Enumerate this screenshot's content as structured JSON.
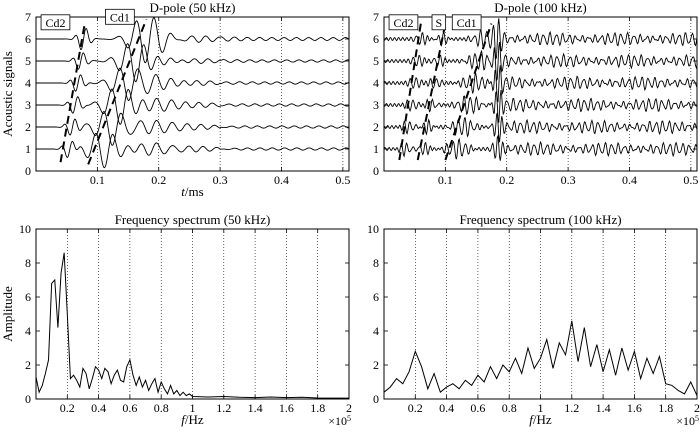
{
  "chart_data": [
    {
      "id": "p1",
      "type": "line",
      "subtype": "waveform-stack",
      "title": "D-pole (50 kHz)",
      "xlabel_italic": "t",
      "xlabel_unit": "/ms",
      "ylabel": "Acoustic signals",
      "xlim": [
        0,
        0.51
      ],
      "ylim": [
        0,
        7
      ],
      "xticks": [
        0.1,
        0.2,
        0.3,
        0.4,
        0.5
      ],
      "xtick_labels": [
        "0.1",
        "0.2",
        "0.3",
        "0.4",
        "0.5"
      ],
      "yticks": [
        0,
        1,
        2,
        3,
        4,
        5,
        6,
        7
      ],
      "ytick_labels": [
        "0",
        "1",
        "2",
        "3",
        "4",
        "5",
        "6",
        "7"
      ],
      "dotted_gridlines_x": [
        0.1,
        0.2,
        0.3,
        0.4,
        0.5
      ],
      "traces": [
        1,
        2,
        3,
        4,
        5,
        6
      ],
      "annotations": [
        {
          "label": "Cd2",
          "x": 0.005,
          "y": 6.6,
          "boxed": true
        },
        {
          "label": "Cd1",
          "x": 0.11,
          "y": 6.85,
          "boxed": true
        }
      ],
      "arrival_lines": [
        {
          "name": "Cd2",
          "x": [
            0.04,
            0.08
          ],
          "y": [
            0.4,
            6.8
          ]
        },
        {
          "name": "Cd1",
          "x": [
            0.085,
            0.18
          ],
          "y": [
            0.3,
            6.9
          ]
        }
      ]
    },
    {
      "id": "p2",
      "type": "line",
      "subtype": "waveform-stack",
      "title": "D-pole (100 kHz)",
      "xlim": [
        0,
        0.51
      ],
      "ylim": [
        0,
        7
      ],
      "xticks": [
        0.1,
        0.2,
        0.3,
        0.4,
        0.5
      ],
      "xtick_labels": [
        "0.1",
        "0.2",
        "0.3",
        "0.4",
        "0.5"
      ],
      "yticks": [
        0,
        1,
        2,
        3,
        4,
        5,
        6,
        7
      ],
      "ytick_labels": [
        "0",
        "1",
        "2",
        "3",
        "4",
        "5",
        "6",
        "7"
      ],
      "dotted_gridlines_x": [
        0.1,
        0.2,
        0.3,
        0.4,
        0.5
      ],
      "traces": [
        1,
        2,
        3,
        4,
        5,
        6
      ],
      "annotations": [
        {
          "label": "Cd2",
          "x": 0.005,
          "y": 6.6,
          "boxed": true
        },
        {
          "label": "S",
          "x": 0.075,
          "y": 6.6,
          "boxed": true
        },
        {
          "label": "Cd1",
          "x": 0.108,
          "y": 6.6,
          "boxed": true
        }
      ],
      "arrival_lines": [
        {
          "name": "Cd2",
          "x": [
            0.025,
            0.06
          ],
          "y": [
            0.5,
            6.7
          ]
        },
        {
          "name": "S",
          "x": [
            0.055,
            0.1
          ],
          "y": [
            0.5,
            6.7
          ]
        },
        {
          "name": "Cd1",
          "x": [
            0.1,
            0.175
          ],
          "y": [
            0.5,
            6.7
          ]
        }
      ]
    },
    {
      "id": "p3",
      "type": "line",
      "title": "Frequency spectrum (50 kHz)",
      "xlabel_italic": "f",
      "xlabel_unit": "/Hz",
      "ylabel": "Amplitude",
      "multiplier": "×10",
      "multiplier_exp": "5",
      "xlim": [
        0,
        2.0
      ],
      "ylim": [
        0,
        10
      ],
      "xticks": [
        0.2,
        0.4,
        0.6,
        0.8,
        1.0,
        1.2,
        1.4,
        1.6,
        1.8,
        2.0
      ],
      "xtick_labels": [
        "0.2",
        "0.4",
        "0.6",
        "0.8",
        "1",
        "1.2",
        "1.4",
        "1.6",
        "1.8",
        "2"
      ],
      "yticks": [
        0,
        2,
        4,
        6,
        8,
        10
      ],
      "ytick_labels": [
        "0",
        "2",
        "4",
        "6",
        "8",
        "10"
      ],
      "dotted_gridlines_x": [
        0.2,
        0.4,
        0.6,
        0.8,
        1.0,
        1.2,
        1.4,
        1.6,
        1.8
      ],
      "x": [
        0.0,
        0.02,
        0.04,
        0.06,
        0.08,
        0.1,
        0.12,
        0.14,
        0.16,
        0.18,
        0.2,
        0.22,
        0.24,
        0.26,
        0.28,
        0.3,
        0.32,
        0.34,
        0.36,
        0.38,
        0.4,
        0.42,
        0.44,
        0.46,
        0.48,
        0.5,
        0.52,
        0.54,
        0.56,
        0.58,
        0.6,
        0.62,
        0.64,
        0.66,
        0.68,
        0.7,
        0.72,
        0.74,
        0.76,
        0.78,
        0.8,
        0.82,
        0.84,
        0.86,
        0.88,
        0.9,
        0.92,
        0.94,
        0.96,
        0.98,
        1.0,
        1.1,
        1.2,
        1.3,
        1.4,
        1.5,
        1.6,
        1.7,
        1.8,
        1.9,
        2.0
      ],
      "values": [
        1.3,
        0.4,
        0.8,
        1.5,
        2.3,
        6.8,
        7.0,
        4.2,
        7.4,
        8.6,
        5.0,
        1.2,
        1.4,
        1.1,
        0.7,
        1.8,
        1.5,
        0.6,
        1.2,
        1.9,
        1.7,
        1.2,
        1.8,
        1.6,
        0.9,
        1.4,
        1.7,
        1.1,
        1.0,
        1.9,
        2.3,
        1.4,
        0.8,
        1.3,
        0.7,
        1.1,
        0.5,
        0.9,
        1.2,
        0.4,
        1.0,
        0.6,
        0.3,
        0.8,
        0.3,
        0.5,
        0.2,
        0.4,
        0.2,
        0.3,
        0.15,
        0.12,
        0.15,
        0.1,
        0.08,
        0.12,
        0.08,
        0.1,
        0.06,
        0.05,
        0.05
      ]
    },
    {
      "id": "p4",
      "type": "line",
      "title": "Frequency spectrum (100 kHz)",
      "xlabel_italic": "f",
      "xlabel_unit": "/Hz",
      "multiplier": "×10",
      "multiplier_exp": "5",
      "xlim": [
        0,
        2.0
      ],
      "ylim": [
        0,
        10
      ],
      "xticks": [
        0.2,
        0.4,
        0.6,
        0.8,
        1.0,
        1.2,
        1.4,
        1.6,
        1.8,
        2.0
      ],
      "xtick_labels": [
        "0.2",
        "0.4",
        "0.6",
        "0.8",
        "1",
        "1.2",
        "1.4",
        "1.6",
        "1.8",
        "2"
      ],
      "yticks": [
        0,
        2,
        4,
        6,
        8,
        10
      ],
      "ytick_labels": [
        "0",
        "2",
        "4",
        "6",
        "8",
        "10"
      ],
      "dotted_gridlines_x": [
        0.2,
        0.4,
        0.6,
        0.8,
        1.0,
        1.2,
        1.4,
        1.6,
        1.8
      ],
      "x": [
        0.0,
        0.04,
        0.08,
        0.12,
        0.16,
        0.2,
        0.24,
        0.28,
        0.32,
        0.36,
        0.4,
        0.44,
        0.48,
        0.52,
        0.56,
        0.6,
        0.64,
        0.68,
        0.72,
        0.76,
        0.8,
        0.84,
        0.88,
        0.92,
        0.96,
        1.0,
        1.04,
        1.08,
        1.12,
        1.16,
        1.2,
        1.24,
        1.28,
        1.32,
        1.36,
        1.4,
        1.44,
        1.48,
        1.52,
        1.56,
        1.6,
        1.64,
        1.68,
        1.72,
        1.76,
        1.8,
        1.84,
        1.88,
        1.92,
        1.96,
        2.0
      ],
      "values": [
        0.4,
        0.7,
        1.2,
        0.9,
        1.6,
        2.8,
        1.9,
        0.6,
        1.5,
        0.4,
        0.7,
        0.9,
        0.6,
        1.1,
        0.8,
        1.4,
        1.0,
        1.9,
        1.2,
        2.0,
        1.6,
        2.4,
        1.5,
        3.0,
        1.8,
        2.4,
        3.5,
        1.8,
        3.3,
        2.6,
        4.6,
        2.2,
        4.2,
        1.9,
        3.2,
        1.6,
        2.9,
        1.4,
        3.0,
        1.7,
        2.8,
        1.2,
        2.4,
        1.5,
        2.5,
        0.9,
        0.8,
        0.5,
        0.3,
        1.0,
        0.2
      ]
    }
  ]
}
